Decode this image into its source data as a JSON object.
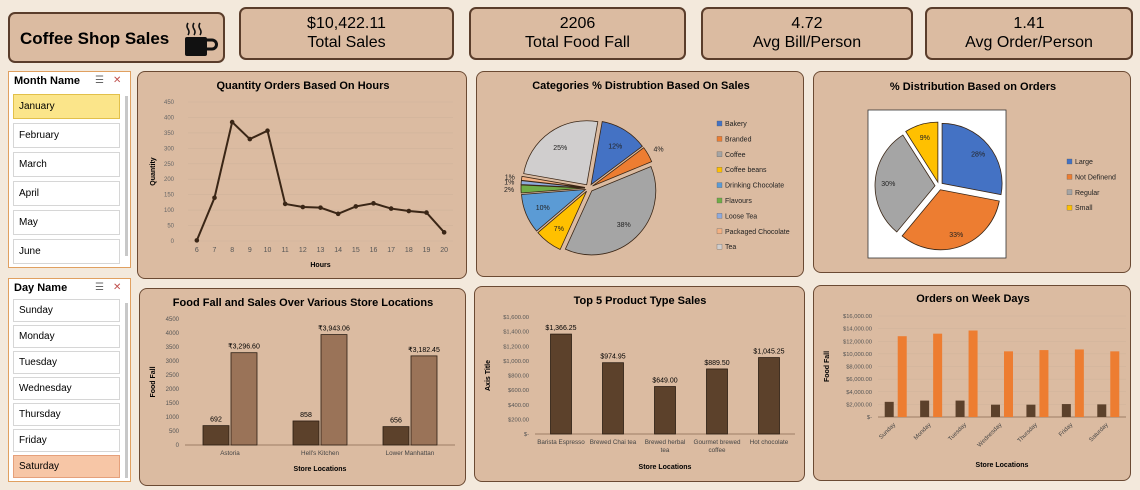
{
  "header": {
    "title": "Coffee Shop Sales",
    "cup_icon": "coffee-cup-icon"
  },
  "kpis": [
    {
      "value": "$10,422.11",
      "label": "Total Sales"
    },
    {
      "value": "2206",
      "label": "Total Food Fall"
    },
    {
      "value": "4.72",
      "label": "Avg Bill/Person"
    },
    {
      "value": "1.41",
      "label": "Avg Order/Person"
    }
  ],
  "month_slicer": {
    "title": "Month Name",
    "items": [
      "January",
      "February",
      "March",
      "April",
      "May",
      "June"
    ],
    "selected": "January"
  },
  "day_slicer": {
    "title": "Day Name",
    "items": [
      "Sunday",
      "Monday",
      "Tuesday",
      "Wednesday",
      "Thursday",
      "Friday",
      "Saturday"
    ],
    "selected": "Saturday"
  },
  "colors": {
    "panel": "#dbbba1",
    "dark_brown": "#5c412b",
    "light_brown": "#9a7358",
    "orange": "#ed7d31",
    "line": "#3a2616"
  },
  "chart_data": [
    {
      "type": "line",
      "title": "Quantity Orders Based On Hours",
      "xlabel": "Hours",
      "ylabel": "Quantity",
      "x": [
        6,
        7,
        8,
        9,
        10,
        11,
        12,
        13,
        14,
        15,
        16,
        17,
        18,
        19,
        20
      ],
      "values": [
        2,
        140,
        385,
        330,
        357,
        120,
        110,
        108,
        88,
        112,
        122,
        105,
        97,
        92,
        28
      ],
      "yticks": [
        0,
        50,
        100,
        150,
        200,
        250,
        300,
        350,
        400,
        450
      ],
      "ylim": [
        0,
        450
      ]
    },
    {
      "type": "pie",
      "title": "Categories % Distrubtion Based On Sales",
      "labels": [
        "Bakery",
        "Branded",
        "Coffee",
        "Coffee beans",
        "Drinking Chocolate",
        "Flavours",
        "Loose Tea",
        "Packaged Chocolate",
        "Tea"
      ],
      "values": [
        12,
        4,
        38,
        7,
        10,
        2,
        1,
        1,
        25
      ],
      "data_labels": [
        "12%",
        "4%",
        "38%",
        "7%",
        "10%",
        "2%",
        "1%",
        "1%",
        "25%"
      ],
      "colors": [
        "#4472c4",
        "#ed7d31",
        "#a5a5a5",
        "#ffc000",
        "#5b9bd5",
        "#70ad47",
        "#8faadc",
        "#f4b183",
        "#d0cece"
      ],
      "legend": "right"
    },
    {
      "type": "pie",
      "title": "% Distribution Based on Orders",
      "labels": [
        "Large",
        "Not Definend",
        "Regular",
        "Small"
      ],
      "values": [
        28,
        33,
        30,
        9
      ],
      "data_labels": [
        "28%",
        "33%",
        "30%",
        "9%"
      ],
      "colors": [
        "#4472c4",
        "#ed7d31",
        "#a5a5a5",
        "#ffc000"
      ],
      "legend": "right"
    },
    {
      "type": "bar",
      "title": "Food Fall and Sales Over Various Store Locations",
      "xlabel": "Store Locations",
      "ylabel": "Food Fall",
      "categories": [
        "Astoria",
        "Hell's Kitchen",
        "Lower Manhattan"
      ],
      "series": [
        {
          "values": [
            692,
            858,
            656
          ],
          "labels": [
            "692",
            "858",
            "656"
          ]
        },
        {
          "values": [
            3296.6,
            3943.06,
            3182.45
          ],
          "labels": [
            "₹3,296.60",
            "₹3,943.06",
            "₹3,182.45"
          ]
        }
      ],
      "yticks": [
        0,
        500,
        1000,
        1500,
        2000,
        2500,
        3000,
        3500,
        4000,
        4500
      ],
      "ylim": [
        0,
        4500
      ]
    },
    {
      "type": "bar",
      "title": "Top 5 Product Type Sales",
      "xlabel": "Store Locations",
      "ylabel": "Axis Title",
      "categories": [
        "Barista Espresso",
        "Brewed Chai tea",
        "Brewed herbal tea",
        "Gourmet brewed coffee",
        "Hot chocolate"
      ],
      "values": [
        1366.25,
        974.95,
        649.0,
        889.5,
        1045.25
      ],
      "data_labels": [
        "$1,366.25",
        "$974.95",
        "$649.00",
        "$889.50",
        "$1,045.25"
      ],
      "ytick_labels": [
        "$-",
        "$200.00",
        "$400.00",
        "$600.00",
        "$800.00",
        "$1,000.00",
        "$1,200.00",
        "$1,400.00",
        "$1,600.00"
      ],
      "ylim": [
        0,
        1600
      ]
    },
    {
      "type": "bar",
      "title": "Orders on Week Days",
      "xlabel": "Store Locations",
      "ylabel": "Food Fall",
      "categories": [
        "Sunday",
        "Monday",
        "Tuesday",
        "Wednesday",
        "Thursday",
        "Friday",
        "Saturday"
      ],
      "series": [
        {
          "values": [
            2400,
            2600,
            2600,
            1950,
            1950,
            2050,
            2000
          ]
        },
        {
          "values": [
            12800,
            13200,
            13700,
            10400,
            10600,
            10700,
            10400
          ]
        }
      ],
      "ytick_labels": [
        "$-",
        "$2,000.00",
        "$4,000.00",
        "$6,000.00",
        "$8,000.00",
        "$10,000.00",
        "$12,000.00",
        "$14,000.00",
        "$16,000.00"
      ],
      "ylim": [
        0,
        16000
      ]
    }
  ]
}
